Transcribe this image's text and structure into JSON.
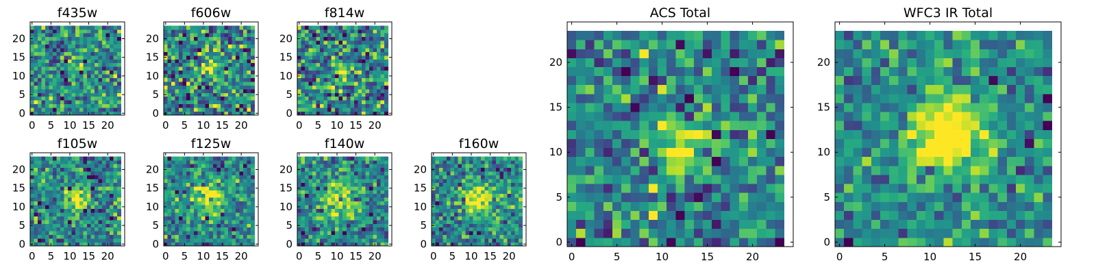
{
  "chart_data": [
    {
      "type": "heatmap",
      "title": "f435w",
      "xticks": [
        "0",
        "5",
        "10",
        "15",
        "20"
      ],
      "yticks": [
        "0",
        "5",
        "10",
        "15",
        "20"
      ],
      "xlim": [
        0,
        24
      ],
      "ylim": [
        0,
        24
      ],
      "grid_size": 24,
      "colormap": "viridis",
      "source_peak": [
        12,
        12
      ],
      "source_sigma": 1.6,
      "source_amplitude": 0.45,
      "noise_level": 0.4,
      "seed": 11
    },
    {
      "type": "heatmap",
      "title": "f606w",
      "xticks": [
        "0",
        "5",
        "10",
        "15",
        "20"
      ],
      "yticks": [
        "0",
        "5",
        "10",
        "15",
        "20"
      ],
      "xlim": [
        0,
        24
      ],
      "ylim": [
        0,
        24
      ],
      "grid_size": 24,
      "colormap": "viridis",
      "source_peak": [
        12,
        12
      ],
      "source_sigma": 1.7,
      "source_amplitude": 0.45,
      "noise_level": 0.45,
      "seed": 23
    },
    {
      "type": "heatmap",
      "title": "f814w",
      "xticks": [
        "0",
        "5",
        "10",
        "15",
        "20"
      ],
      "yticks": [
        "0",
        "5",
        "10",
        "15",
        "20"
      ],
      "xlim": [
        0,
        24
      ],
      "ylim": [
        0,
        24
      ],
      "grid_size": 24,
      "colormap": "viridis",
      "source_peak": [
        12,
        12
      ],
      "source_sigma": 1.7,
      "source_amplitude": 0.4,
      "noise_level": 0.45,
      "seed": 37
    },
    {
      "type": "heatmap",
      "title": "f105w",
      "xticks": [
        "0",
        "5",
        "10",
        "15",
        "20"
      ],
      "yticks": [
        "0",
        "5",
        "10",
        "15",
        "20"
      ],
      "xlim": [
        0,
        24
      ],
      "ylim": [
        0,
        24
      ],
      "grid_size": 24,
      "colormap": "viridis",
      "source_peak": [
        12,
        12
      ],
      "source_sigma": 2.0,
      "source_amplitude": 0.6,
      "noise_level": 0.35,
      "seed": 41
    },
    {
      "type": "heatmap",
      "title": "f125w",
      "xticks": [
        "0",
        "5",
        "10",
        "15",
        "20"
      ],
      "yticks": [
        "0",
        "5",
        "10",
        "15",
        "20"
      ],
      "xlim": [
        0,
        24
      ],
      "ylim": [
        0,
        24
      ],
      "grid_size": 24,
      "colormap": "viridis",
      "source_peak": [
        12,
        12
      ],
      "source_sigma": 2.8,
      "source_amplitude": 0.55,
      "noise_level": 0.35,
      "seed": 53
    },
    {
      "type": "heatmap",
      "title": "f140w",
      "xticks": [
        "0",
        "5",
        "10",
        "15",
        "20"
      ],
      "yticks": [
        "0",
        "5",
        "10",
        "15",
        "20"
      ],
      "xlim": [
        0,
        24
      ],
      "ylim": [
        0,
        24
      ],
      "grid_size": 24,
      "colormap": "viridis",
      "source_peak": [
        11,
        12
      ],
      "source_sigma": 3.4,
      "source_amplitude": 0.5,
      "noise_level": 0.35,
      "seed": 67
    },
    {
      "type": "heatmap",
      "title": "f160w",
      "xticks": [
        "0",
        "5",
        "10",
        "15",
        "20"
      ],
      "yticks": [
        "0",
        "5",
        "10",
        "15",
        "20"
      ],
      "xlim": [
        0,
        24
      ],
      "ylim": [
        0,
        24
      ],
      "grid_size": 24,
      "colormap": "viridis",
      "source_peak": [
        12,
        12
      ],
      "source_sigma": 2.9,
      "source_amplitude": 0.55,
      "noise_level": 0.35,
      "seed": 79
    },
    {
      "type": "heatmap",
      "title": "ACS Total",
      "xticks": [
        "0",
        "5",
        "10",
        "15",
        "20"
      ],
      "yticks": [
        "0",
        "5",
        "10",
        "15",
        "20"
      ],
      "xlim": [
        0,
        24
      ],
      "ylim": [
        0,
        24
      ],
      "grid_size": 24,
      "colormap": "viridis",
      "source_peak": [
        12,
        11
      ],
      "source_sigma": 1.7,
      "source_amplitude": 0.6,
      "noise_level": 0.4,
      "seed": 91
    },
    {
      "type": "heatmap",
      "title": "WFC3 IR Total",
      "xticks": [
        "0",
        "5",
        "10",
        "15",
        "20"
      ],
      "yticks": [
        "0",
        "5",
        "10",
        "15",
        "20"
      ],
      "xlim": [
        0,
        24
      ],
      "ylim": [
        0,
        24
      ],
      "grid_size": 24,
      "colormap": "viridis",
      "source_peak": [
        12,
        12
      ],
      "source_sigma": 3.0,
      "source_amplitude": 0.75,
      "noise_level": 0.3,
      "seed": 103
    }
  ]
}
